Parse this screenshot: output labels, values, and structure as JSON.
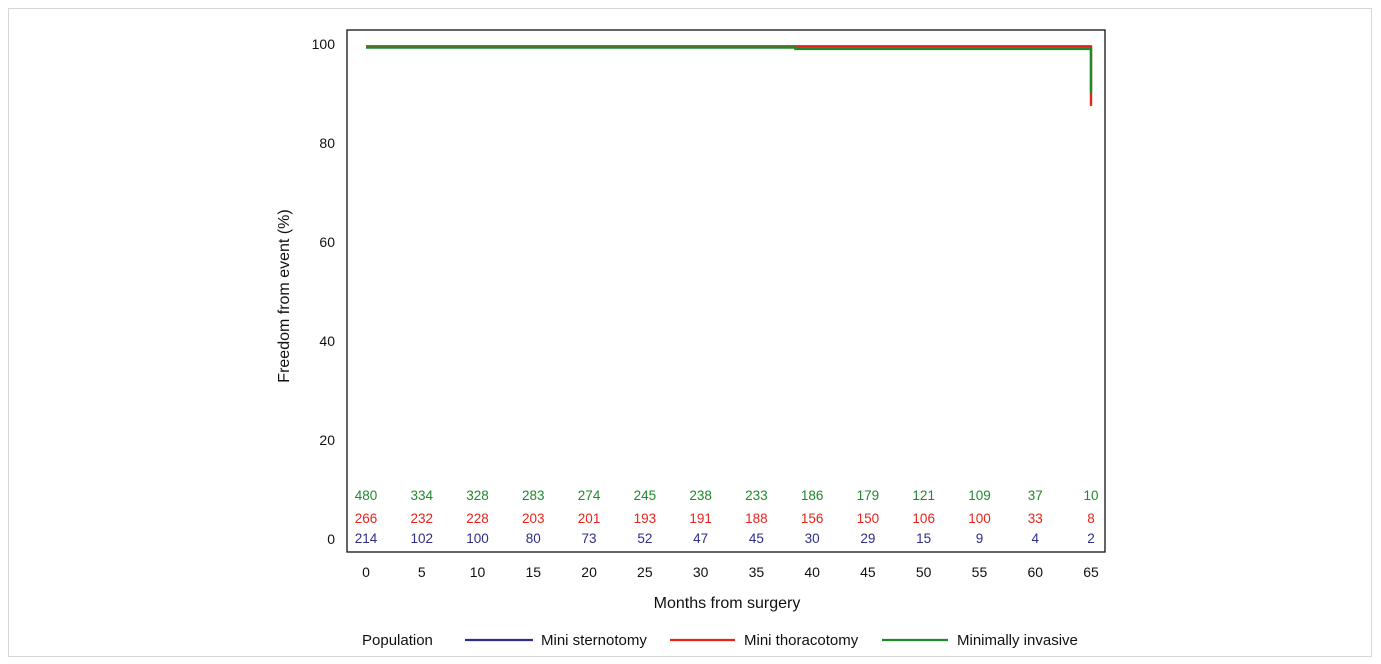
{
  "chart_data": {
    "type": "line",
    "xlabel": "Months from surgery",
    "ylabel": "Freedom from event (%)",
    "xlim": [
      0,
      65
    ],
    "ylim": [
      0,
      100
    ],
    "x_ticks": [
      0,
      5,
      10,
      15,
      20,
      25,
      30,
      35,
      40,
      45,
      50,
      55,
      60,
      65
    ],
    "y_ticks": [
      0,
      20,
      40,
      60,
      80,
      100
    ],
    "grid": false,
    "legend": {
      "title": "Population",
      "placement": "bottom"
    },
    "series": [
      {
        "name": "Mini sternotomy",
        "color": "#2e2e8a",
        "x": [
          0,
          65,
          65
        ],
        "y": [
          99.5,
          99.5,
          99.5
        ]
      },
      {
        "name": "Mini thoracotomy",
        "color": "#e8231c",
        "x": [
          0,
          65,
          65
        ],
        "y": [
          99.5,
          99.5,
          87.5
        ]
      },
      {
        "name": "Minimally invasive",
        "color": "#1e8a2c",
        "x": [
          0,
          38.5,
          38.5,
          65,
          65
        ],
        "y": [
          99.3,
          99.3,
          99,
          99,
          90
        ]
      }
    ],
    "at_risk": {
      "times": [
        0,
        5,
        10,
        15,
        20,
        25,
        30,
        35,
        40,
        45,
        50,
        55,
        60,
        65
      ],
      "rows": [
        {
          "series": "Minimally invasive",
          "color": "#1e8a2c",
          "values": [
            "480",
            "334",
            "328",
            "283",
            "274",
            "245",
            "238",
            "233",
            "186",
            "179",
            "121",
            "109",
            "37",
            "10"
          ]
        },
        {
          "series": "Mini thoracotomy",
          "color": "#e8231c",
          "values": [
            "266",
            "232",
            "228",
            "203",
            "201",
            "193",
            "191",
            "188",
            "156",
            "150",
            "106",
            "100",
            "33",
            "8"
          ]
        },
        {
          "series": "Mini sternotomy",
          "color": "#2e2e8a",
          "values": [
            "214",
            "102",
            "100",
            "80",
            "73",
            "52",
            "47",
            "45",
            "30",
            "29",
            "15",
            "9",
            "4",
            "2"
          ]
        }
      ]
    }
  }
}
